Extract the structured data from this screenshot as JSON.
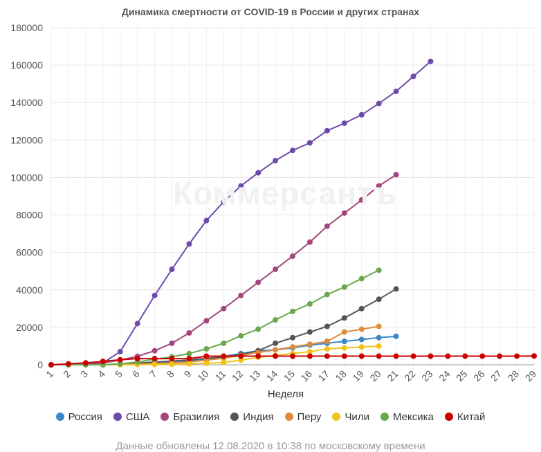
{
  "chart_data": {
    "type": "line",
    "title": "Динамика смертности от COVID-19 в России и других странах",
    "xlabel": "Неделя",
    "ylabel": "",
    "x": [
      1,
      2,
      3,
      4,
      5,
      6,
      7,
      8,
      9,
      10,
      11,
      12,
      13,
      14,
      15,
      16,
      17,
      18,
      19,
      20,
      21,
      22,
      23,
      24,
      25,
      26,
      27,
      28,
      29
    ],
    "ylim": [
      0,
      180000
    ],
    "yticks": [
      0,
      20000,
      40000,
      60000,
      80000,
      100000,
      120000,
      140000,
      160000,
      180000
    ],
    "grid": true,
    "legend_position": "bottom",
    "series": [
      {
        "name": "Россия",
        "color": "#3a86c8",
        "values": [
          0,
          0,
          0,
          0,
          200,
          600,
          1000,
          1500,
          2000,
          3000,
          4500,
          6000,
          7500,
          8000,
          9000,
          10500,
          11500,
          12500,
          13500,
          14500,
          15200,
          null,
          null,
          null,
          null,
          null,
          null,
          null,
          null
        ]
      },
      {
        "name": "США",
        "color": "#6e4bab",
        "values": [
          0,
          0,
          500,
          1000,
          7000,
          22000,
          37000,
          51000,
          64500,
          77000,
          87000,
          95500,
          102500,
          109000,
          114500,
          118500,
          125000,
          129000,
          133500,
          139500,
          146000,
          154000,
          162000,
          null,
          null,
          null,
          null,
          null,
          null
        ]
      },
      {
        "name": "Бразилия",
        "color": "#a4467a",
        "values": [
          0,
          0,
          0,
          1000,
          2500,
          4500,
          7500,
          11500,
          17000,
          23500,
          30000,
          37000,
          44000,
          51000,
          58000,
          65500,
          74000,
          81000,
          88000,
          95500,
          101500,
          null,
          null,
          null,
          null,
          null,
          null,
          null,
          null
        ]
      },
      {
        "name": "Индия",
        "color": "#555555",
        "values": [
          0,
          0,
          0,
          0,
          500,
          900,
          1500,
          2000,
          2500,
          3500,
          4000,
          5500,
          7500,
          11500,
          14500,
          17500,
          20500,
          25000,
          30000,
          35000,
          40500,
          null,
          null,
          null,
          null,
          null,
          null,
          null,
          null
        ]
      },
      {
        "name": "Перу",
        "color": "#e08a3c",
        "values": [
          0,
          0,
          0,
          0,
          100,
          300,
          600,
          1000,
          1500,
          2500,
          3500,
          5000,
          6500,
          8000,
          9500,
          11000,
          12500,
          17500,
          19000,
          20500,
          null,
          null,
          null,
          null,
          null,
          null,
          null,
          null,
          null
        ]
      },
      {
        "name": "Чили",
        "color": "#f0c419",
        "values": [
          0,
          0,
          0,
          0,
          0,
          100,
          200,
          300,
          500,
          800,
          1200,
          2500,
          4000,
          5000,
          6000,
          7000,
          8500,
          9000,
          9500,
          10000,
          null,
          null,
          null,
          null,
          null,
          null,
          null,
          null,
          null
        ]
      },
      {
        "name": "Мексика",
        "color": "#6aa84f",
        "values": [
          0,
          0,
          0,
          0,
          500,
          1500,
          3000,
          4200,
          6000,
          8500,
          11500,
          15500,
          19000,
          24000,
          28500,
          32500,
          37500,
          41500,
          46000,
          50500,
          null,
          null,
          null,
          null,
          null,
          null,
          null,
          null,
          null
        ]
      },
      {
        "name": "Китай",
        "color": "#cc0000",
        "values": [
          0,
          500,
          1000,
          1800,
          2700,
          3300,
          3300,
          3300,
          3300,
          4600,
          4600,
          4600,
          4600,
          4600,
          4600,
          4600,
          4600,
          4600,
          4600,
          4600,
          4600,
          4600,
          4600,
          4600,
          4600,
          4600,
          4600,
          4600,
          4700
        ]
      }
    ]
  },
  "watermark": "Коммерсантъ",
  "footer": "Данные обновлены 12.08.2020 в 10:38 по московскому времени"
}
